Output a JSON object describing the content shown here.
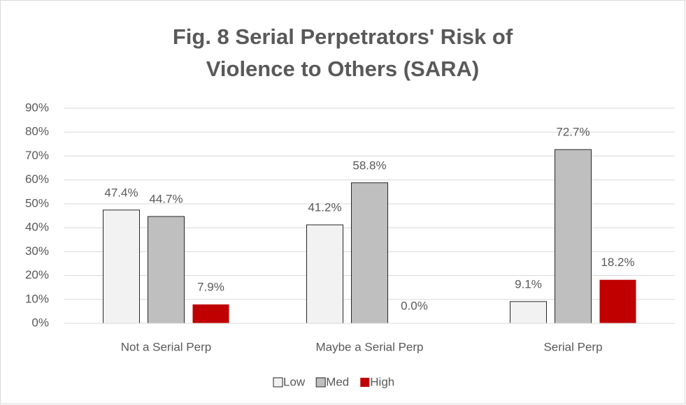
{
  "chart_data": {
    "type": "bar",
    "title": "Fig. 8 Serial Perpetrators' Risk of Violence to Others (SARA)",
    "categories": [
      "Not a Serial Perp",
      "Maybe a Serial Perp",
      "Serial Perp"
    ],
    "series": [
      {
        "name": "Low",
        "color": "#f2f2f2",
        "values": [
          47.4,
          41.2,
          9.1
        ],
        "value_labels": [
          "47.4%",
          "41.2%",
          "9.1%"
        ]
      },
      {
        "name": "Med",
        "color": "#bfbfbf",
        "values": [
          44.7,
          58.8,
          72.7
        ],
        "value_labels": [
          "44.7%",
          "58.8%",
          "72.7%"
        ]
      },
      {
        "name": "High",
        "color": "#c00000",
        "values": [
          7.9,
          0.0,
          18.2
        ],
        "value_labels": [
          "7.9%",
          "0.0%",
          "18.2%"
        ]
      }
    ],
    "ylim": [
      0,
      90
    ],
    "yticks": [
      {
        "value": 0,
        "label": "0%"
      },
      {
        "value": 10,
        "label": "10%"
      },
      {
        "value": 20,
        "label": "20%"
      },
      {
        "value": 30,
        "label": "30%"
      },
      {
        "value": 40,
        "label": "40%"
      },
      {
        "value": 50,
        "label": "50%"
      },
      {
        "value": 60,
        "label": "60%"
      },
      {
        "value": 70,
        "label": "70%"
      },
      {
        "value": 80,
        "label": "80%"
      },
      {
        "value": 90,
        "label": "90%"
      }
    ],
    "grid": true,
    "legend": "bottom"
  }
}
